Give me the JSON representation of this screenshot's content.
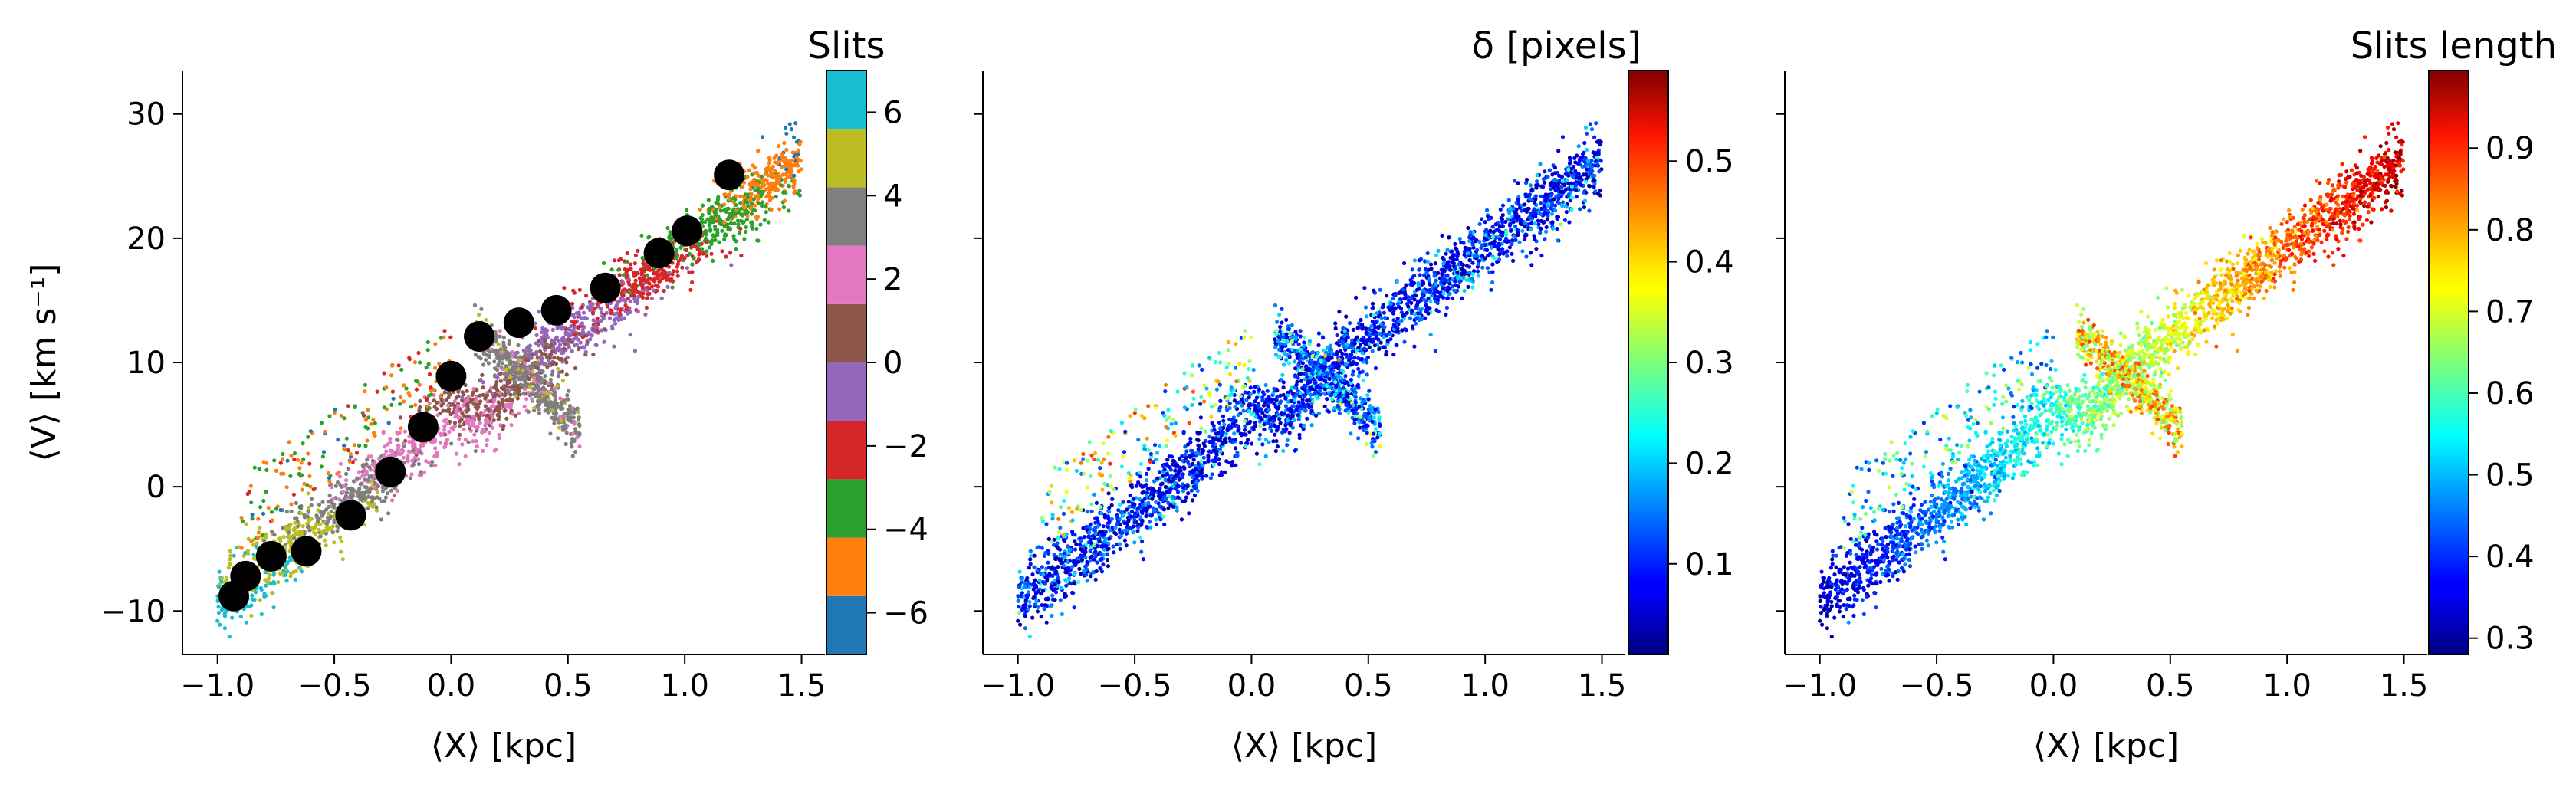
{
  "chart_data": [
    {
      "type": "scatter",
      "title": "Slits",
      "xlabel": "⟨X⟩ [kpc]",
      "ylabel": "⟨V⟩ [km s⁻¹]",
      "xlim": [
        -1.15,
        1.6
      ],
      "ylim": [
        -13.5,
        33.5
      ],
      "x_ticks": [
        -1.0,
        -0.5,
        0.0,
        0.5,
        1.0,
        1.5
      ],
      "x_tick_labels": [
        "−1.0",
        "−0.5",
        "0.0",
        "0.5",
        "1.0",
        "1.5"
      ],
      "y_ticks": [
        -10,
        0,
        10,
        20,
        30
      ],
      "y_tick_labels": [
        "−10",
        "0",
        "10",
        "20",
        "30"
      ],
      "colorbar": {
        "type": "discrete",
        "range": [
          -7,
          7
        ],
        "ticks": [
          -6,
          -4,
          -2,
          0,
          2,
          4,
          6
        ],
        "tick_labels": [
          "−6",
          "−4",
          "−2",
          "0",
          "2",
          "4",
          "6"
        ],
        "bins": [
          {
            "from": -7.0,
            "to": -5.6,
            "color": "#1f77b4"
          },
          {
            "from": -5.6,
            "to": -4.2,
            "color": "#ff7f0e"
          },
          {
            "from": -4.2,
            "to": -2.8,
            "color": "#2ca02c"
          },
          {
            "from": -2.8,
            "to": -1.4,
            "color": "#d62728"
          },
          {
            "from": -1.4,
            "to": 0.0,
            "color": "#9467bd"
          },
          {
            "from": 0.0,
            "to": 1.4,
            "color": "#8c564b"
          },
          {
            "from": 1.4,
            "to": 2.8,
            "color": "#e377c2"
          },
          {
            "from": 2.8,
            "to": 4.2,
            "color": "#7f7f7f"
          },
          {
            "from": 4.2,
            "to": 5.6,
            "color": "#bcbd22"
          },
          {
            "from": 5.6,
            "to": 7.0,
            "color": "#17becf"
          }
        ]
      },
      "slit_centers": {
        "marker_color": "#000000",
        "points": [
          [
            -0.93,
            -8.8
          ],
          [
            -0.88,
            -7.2
          ],
          [
            -0.77,
            -5.6
          ],
          [
            -0.62,
            -5.2
          ],
          [
            -0.43,
            -2.3
          ],
          [
            -0.26,
            1.2
          ],
          [
            -0.12,
            4.8
          ],
          [
            0.0,
            8.9
          ],
          [
            0.12,
            12.1
          ],
          [
            0.29,
            13.2
          ],
          [
            0.45,
            14.2
          ],
          [
            0.66,
            16.0
          ],
          [
            0.89,
            18.8
          ],
          [
            1.01,
            20.6
          ],
          [
            1.19,
            25.1
          ]
        ]
      },
      "scatter": {
        "description_values": "dense cloud of dots following V ≈ 14·X + 5 from X=-1.0 to 1.5, plus an inner branch near X≈0.1–0.5, V≈4–12, colored by slit index",
        "main_track": {
          "x": [
            -1.0,
            1.5
          ],
          "v": [
            -10.0,
            30.5
          ]
        },
        "inner_branch": {
          "x": [
            0.1,
            0.5
          ],
          "v": [
            12.0,
            4.0
          ]
        }
      }
    },
    {
      "type": "scatter",
      "title": "δ [pixels]",
      "xlabel": "⟨X⟩ [kpc]",
      "ylabel": "",
      "xlim": [
        -1.15,
        1.6
      ],
      "ylim": [
        -13.5,
        33.5
      ],
      "x_ticks": [
        -1.0,
        -0.5,
        0.0,
        0.5,
        1.0,
        1.5
      ],
      "x_tick_labels": [
        "−1.0",
        "−0.5",
        "0.0",
        "0.5",
        "1.0",
        "1.5"
      ],
      "colorbar": {
        "type": "continuous",
        "colormap": "jet",
        "range": [
          0.01,
          0.59
        ],
        "ticks": [
          0.1,
          0.2,
          0.3,
          0.4,
          0.5
        ],
        "tick_labels": [
          "0.1",
          "0.2",
          "0.3",
          "0.4",
          "0.5"
        ]
      }
    },
    {
      "type": "scatter",
      "title": "Slits length",
      "xlabel": "⟨X⟩ [kpc]",
      "ylabel": "",
      "xlim": [
        -1.15,
        1.6
      ],
      "ylim": [
        -13.5,
        33.5
      ],
      "x_ticks": [
        -1.0,
        -0.5,
        0.0,
        0.5,
        1.0,
        1.5
      ],
      "x_tick_labels": [
        "−1.0",
        "−0.5",
        "0.0",
        "0.5",
        "1.0",
        "1.5"
      ],
      "colorbar": {
        "type": "continuous",
        "colormap": "jet",
        "range": [
          0.28,
          0.995
        ],
        "ticks": [
          0.3,
          0.4,
          0.5,
          0.6,
          0.7,
          0.8,
          0.9
        ],
        "tick_labels": [
          "0.3",
          "0.4",
          "0.5",
          "0.6",
          "0.7",
          "0.8",
          "0.9"
        ]
      }
    }
  ]
}
